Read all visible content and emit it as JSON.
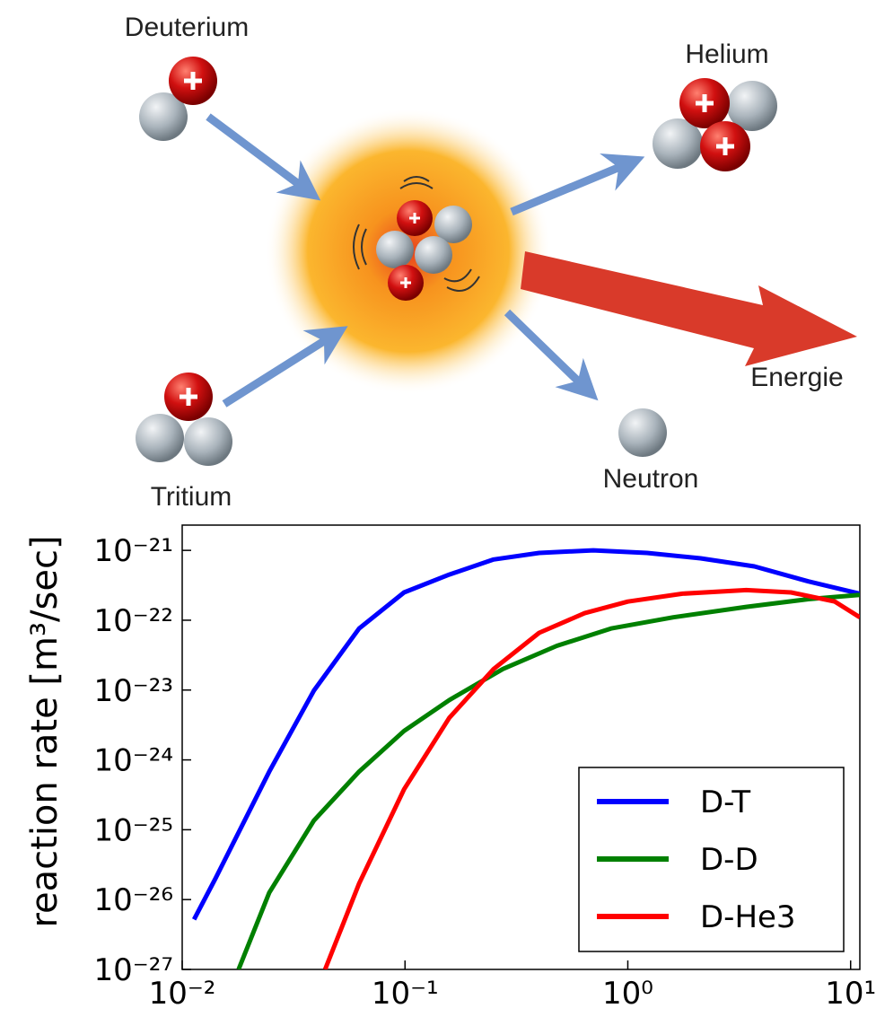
{
  "diagram": {
    "nodes": [
      {
        "label": "Deuterium"
      },
      {
        "label": "Tritium"
      },
      {
        "label": "Helium"
      },
      {
        "label": "Neutron"
      },
      {
        "label": "Energie"
      }
    ]
  },
  "chart_data": {
    "type": "line",
    "ylabel": "reaction rate   [m³/sec]",
    "xscale": "log",
    "yscale": "log",
    "xlim": [
      0.01,
      11
    ],
    "ylim": [
      1e-27,
      2.3e-21
    ],
    "xticks": [
      {
        "value": 0.01,
        "label": "10⁻²"
      },
      {
        "value": 0.1,
        "label": "10⁻¹"
      },
      {
        "value": 1,
        "label": "10⁰"
      },
      {
        "value": 10,
        "label": "10¹"
      }
    ],
    "yticks": [
      {
        "value": 1e-27,
        "label": "10⁻²⁷"
      },
      {
        "value": 1e-26,
        "label": "10⁻²⁶"
      },
      {
        "value": 1e-25,
        "label": "10⁻²⁵"
      },
      {
        "value": 1e-24,
        "label": "10⁻²⁴"
      },
      {
        "value": 1e-23,
        "label": "10⁻²³"
      },
      {
        "value": 1e-22,
        "label": "10⁻²²"
      },
      {
        "value": 1e-21,
        "label": "10⁻²¹"
      }
    ],
    "legend": "lower right",
    "series": [
      {
        "name": "D-T",
        "color": "#0000ff",
        "x": [
          0.0113,
          0.0141,
          0.0246,
          0.039,
          0.0622,
          0.099,
          0.158,
          0.25,
          0.4,
          0.7,
          1.22,
          2.12,
          3.7,
          6.46,
          11
        ],
        "values": [
          5.2e-27,
          2e-26,
          6.8e-25,
          9.8e-24,
          7.6e-23,
          2.5e-22,
          4.5e-22,
          7.4e-22,
          9.2e-22,
          1e-21,
          9.2e-22,
          7.7e-22,
          5.9e-22,
          3.6e-22,
          2.4e-22
        ]
      },
      {
        "name": "D-D",
        "color": "#008000",
        "x": [
          0.0179,
          0.0246,
          0.039,
          0.0622,
          0.099,
          0.158,
          0.275,
          0.48,
          0.84,
          1.6,
          3.4,
          6.46,
          11
        ],
        "values": [
          1e-27,
          1.26e-26,
          1.35e-25,
          6.8e-25,
          2.6e-24,
          7.2e-24,
          2e-23,
          4.3e-23,
          7.6e-23,
          1.1e-22,
          1.55e-22,
          2e-22,
          2.3e-22
        ]
      },
      {
        "name": "D-He3",
        "color": "#ff0000",
        "x": [
          0.0438,
          0.0622,
          0.099,
          0.158,
          0.25,
          0.4,
          0.64,
          1.0,
          1.76,
          3.4,
          5.4,
          8.5,
          11
        ],
        "values": [
          1e-27,
          1.7e-26,
          3.8e-25,
          4e-24,
          2e-23,
          6.6e-23,
          1.26e-22,
          1.85e-22,
          2.4e-22,
          2.7e-22,
          2.5e-22,
          1.85e-22,
          1.1e-22
        ]
      }
    ]
  }
}
